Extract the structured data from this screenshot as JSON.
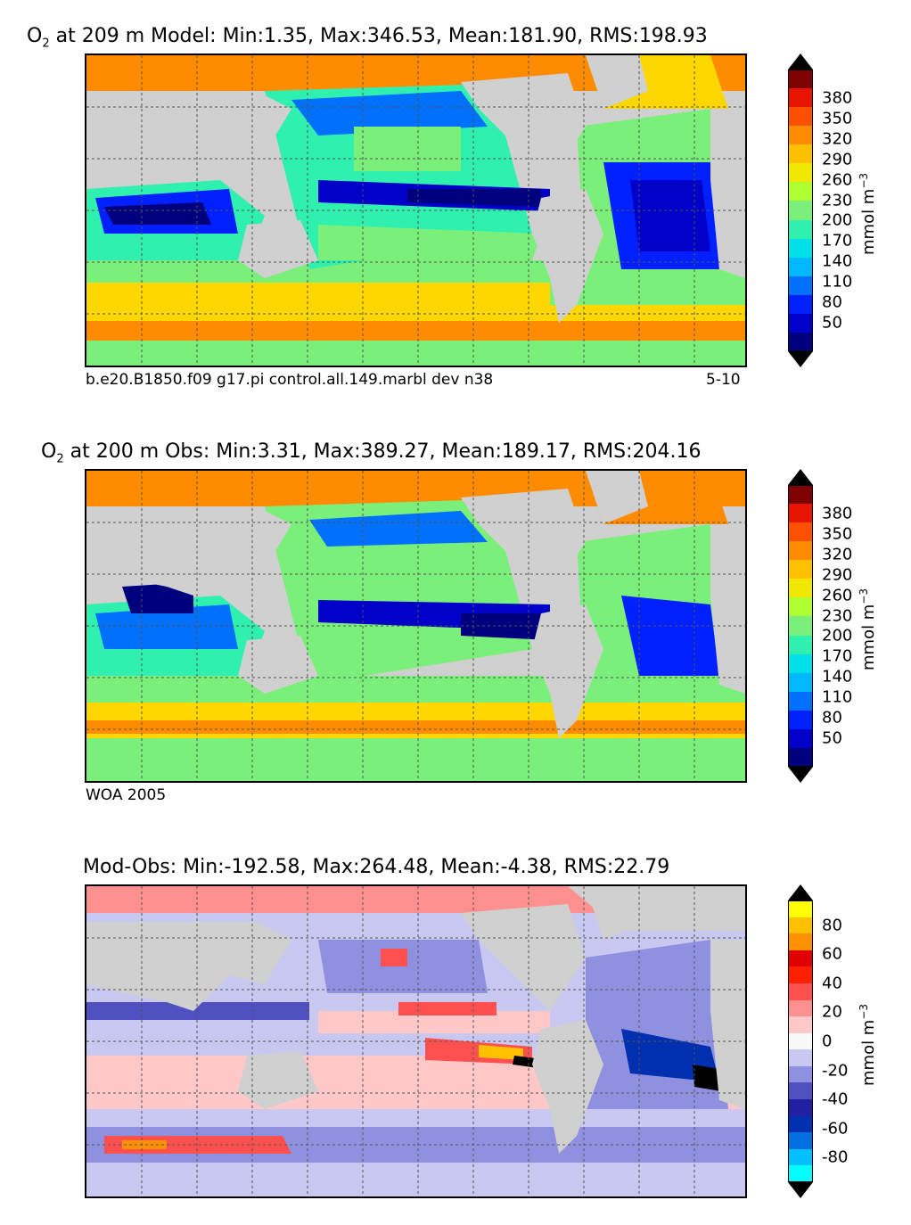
{
  "panels": [
    {
      "id": "model",
      "title_species": "O",
      "title_sub": "2",
      "title_rest": " at 209 m Model: Min:1.35, Max:346.53, Mean:181.90, RMS:198.93",
      "caption_left": "b.e20.B1850.f09 g17.pi control.all.149.marbl dev n38",
      "caption_right": "5-10",
      "colorbar": {
        "ticks": [
          "380",
          "350",
          "320",
          "290",
          "260",
          "230",
          "200",
          "170",
          "140",
          "110",
          "80",
          "50"
        ],
        "units": "mmol m",
        "units_sup": "−3",
        "colors": [
          "#00007f",
          "#0000c8",
          "#0020ff",
          "#0070ff",
          "#00b8ff",
          "#00e0e8",
          "#30f0b0",
          "#7af07a",
          "#b0ff30",
          "#f0e800",
          "#ffc000",
          "#ff8c00",
          "#ff5000",
          "#e81400",
          "#7f0000"
        ]
      },
      "palette": {
        "deep": "#00007f",
        "low": "#0020ff",
        "mid": "#00d0ff",
        "teal": "#30f0b0",
        "green": "#7af07a",
        "yellow": "#ffd700",
        "orange": "#ff8c00",
        "red": "#ff5000",
        "black": "#000000"
      }
    },
    {
      "id": "obs",
      "title_species": "O",
      "title_sub": "2",
      "title_rest": " at 200 m Obs: Min:3.31, Max:389.27, Mean:189.17, RMS:204.16",
      "caption_left": "WOA 2005",
      "caption_right": "",
      "colorbar": {
        "ticks": [
          "380",
          "350",
          "320",
          "290",
          "260",
          "230",
          "200",
          "170",
          "140",
          "110",
          "80",
          "50"
        ],
        "units": "mmol m",
        "units_sup": "−3",
        "colors": [
          "#00007f",
          "#0000c8",
          "#0020ff",
          "#0070ff",
          "#00b8ff",
          "#00e0e8",
          "#30f0b0",
          "#7af07a",
          "#b0ff30",
          "#f0e800",
          "#ffc000",
          "#ff8c00",
          "#ff5000",
          "#e81400",
          "#7f0000"
        ]
      }
    },
    {
      "id": "diff",
      "title_species": "",
      "title_sub": "",
      "title_rest": "Mod-Obs: Min:-192.58, Max:264.48, Mean:-4.38, RMS:22.79",
      "caption_left": "",
      "caption_right": "",
      "colorbar": {
        "ticks": [
          "80",
          "60",
          "40",
          "20",
          "0",
          "-20",
          "-40",
          "-60",
          "-80"
        ],
        "units": "mmol m",
        "units_sup": "−3",
        "colors": [
          "#00ffff",
          "#00c0ff",
          "#0070e0",
          "#0030b0",
          "#2020a0",
          "#5050c0",
          "#9090e0",
          "#c8c8f0",
          "#f8f8f8",
          "#ffc8c8",
          "#ff9090",
          "#ff5050",
          "#ff2000",
          "#e00000",
          "#ff9000",
          "#ffc000",
          "#ffff00"
        ]
      }
    }
  ]
}
